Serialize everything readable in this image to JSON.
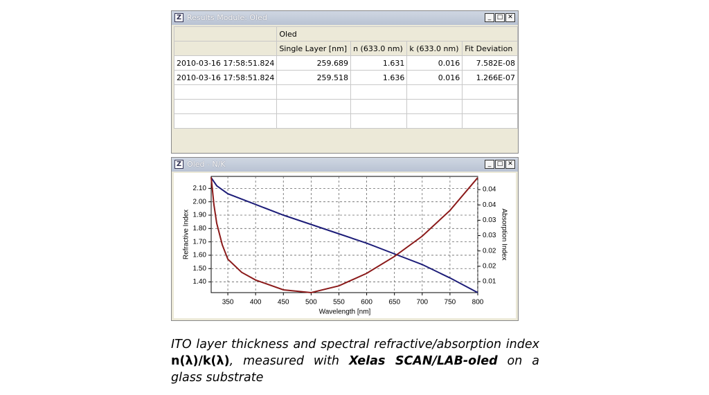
{
  "results_window": {
    "title": "Results Module: Oled",
    "table": {
      "group_header": "Oled",
      "columns": [
        "Single Layer [nm]",
        "n (633.0 nm)",
        "k (633.0 nm)",
        "Fit Deviation"
      ],
      "rows": [
        [
          "2010-03-16 17:58:51.824",
          "259.689",
          "1.631",
          "0.016",
          "7.582E-08"
        ],
        [
          "2010-03-16 17:58:51.824",
          "259.518",
          "1.636",
          "0.016",
          "1.266E-07"
        ]
      ]
    }
  },
  "chart_window": {
    "title": "Oled - N/K"
  },
  "chart_data": {
    "type": "line",
    "x_label": "Wavelength [nm]",
    "y_label": "Refractive Index",
    "y2_label": "Absorption Index",
    "x": [
      320,
      325,
      330,
      340,
      350,
      375,
      400,
      450,
      500,
      550,
      600,
      650,
      700,
      750,
      800
    ],
    "series": [
      {
        "name": "n",
        "color": "#1c1c78",
        "values": [
          2.18,
          2.15,
          2.12,
          2.09,
          2.06,
          2.02,
          1.98,
          1.9,
          1.83,
          1.76,
          1.69,
          1.61,
          1.53,
          1.43,
          1.32
        ]
      },
      {
        "name": "k",
        "color": "#8b1a1a",
        "axis": "y2",
        "values": [
          0.049,
          0.04,
          0.034,
          0.027,
          0.0223,
          0.018,
          0.0155,
          0.0123,
          0.0114,
          0.0136,
          0.0177,
          0.0232,
          0.0298,
          0.0382,
          0.0489
        ]
      }
    ],
    "xlim": [
      320,
      800
    ],
    "xticks": [
      350,
      400,
      450,
      500,
      550,
      600,
      650,
      700,
      750,
      800
    ],
    "ylim": [
      1.32,
      2.19
    ],
    "yticks": [
      {
        "value": 1.4,
        "label": "1.40"
      },
      {
        "value": 1.5,
        "label": "1.50"
      },
      {
        "value": 1.6,
        "label": "1.60"
      },
      {
        "value": 1.7,
        "label": "1.70"
      },
      {
        "value": 1.8,
        "label": "1.80"
      },
      {
        "value": 1.9,
        "label": "1.90"
      },
      {
        "value": 2.0,
        "label": "2.00"
      },
      {
        "value": 2.1,
        "label": "2.10"
      }
    ],
    "y2lim": [
      0.0114,
      0.0493
    ],
    "y2ticks": [
      {
        "value": 0.015,
        "label": "0.01"
      },
      {
        "value": 0.02,
        "label": "0.02"
      },
      {
        "value": 0.025,
        "label": "0.02"
      },
      {
        "value": 0.03,
        "label": "0.03"
      },
      {
        "value": 0.035,
        "label": "0.03"
      },
      {
        "value": 0.04,
        "label": "0.04"
      },
      {
        "value": 0.045,
        "label": "0.04"
      }
    ],
    "grid": true
  },
  "caption": {
    "segments": [
      "ITO layer thickness and spectral refractive/absorption index ",
      "n(λ)/k(λ)",
      ", measured with ",
      "Xelas SCAN/LAB-oled",
      " on a glass substrate"
    ]
  }
}
